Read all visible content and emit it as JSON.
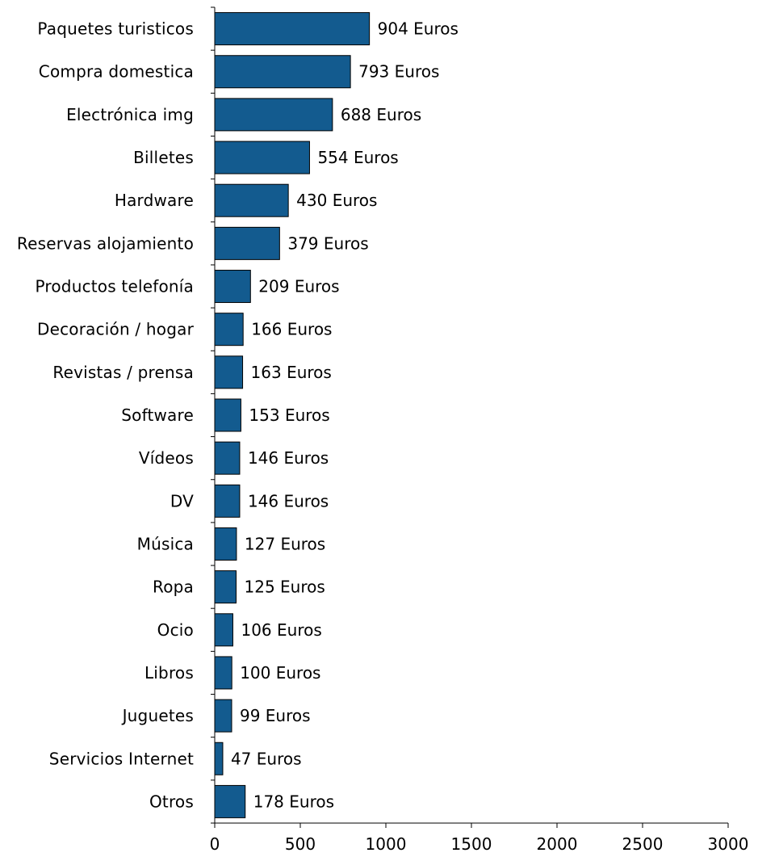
{
  "chart_data": {
    "type": "bar",
    "orientation": "horizontal",
    "title": "",
    "xlabel": "",
    "ylabel": "",
    "xlim": [
      0,
      3000
    ],
    "x_ticks": [
      0,
      500,
      1000,
      1500,
      2000,
      2500,
      3000
    ],
    "x_tick_labels": [
      "0",
      "500",
      "1000",
      "1500",
      "2000",
      "2500",
      "3000"
    ],
    "grid": false,
    "bar_color": "#135b8f",
    "categories": [
      "Paquetes turisticos",
      "Compra domestica",
      "Electrónica img",
      "Billetes",
      "Hardware",
      "Reservas alojamiento",
      "Productos telefonía",
      "Decoración / hogar",
      "Revistas / prensa",
      "Software",
      "Vídeos",
      "DV",
      "Música",
      "Ropa",
      "Ocio",
      "Libros",
      "Juguetes",
      "Servicios Internet",
      "Otros"
    ],
    "values": [
      904,
      793,
      688,
      554,
      430,
      379,
      209,
      166,
      163,
      153,
      146,
      146,
      127,
      125,
      106,
      100,
      99,
      47,
      178
    ],
    "data_labels": [
      "904 Euros",
      "793 Euros",
      "688 Euros",
      "554 Euros",
      "430 Euros",
      "379 Euros",
      "209 Euros",
      "166 Euros",
      "163 Euros",
      "153 Euros",
      "146 Euros",
      "146 Euros",
      "127 Euros",
      "125 Euros",
      "106 Euros",
      "100 Euros",
      "99 Euros",
      "47 Euros",
      "178 Euros"
    ]
  }
}
